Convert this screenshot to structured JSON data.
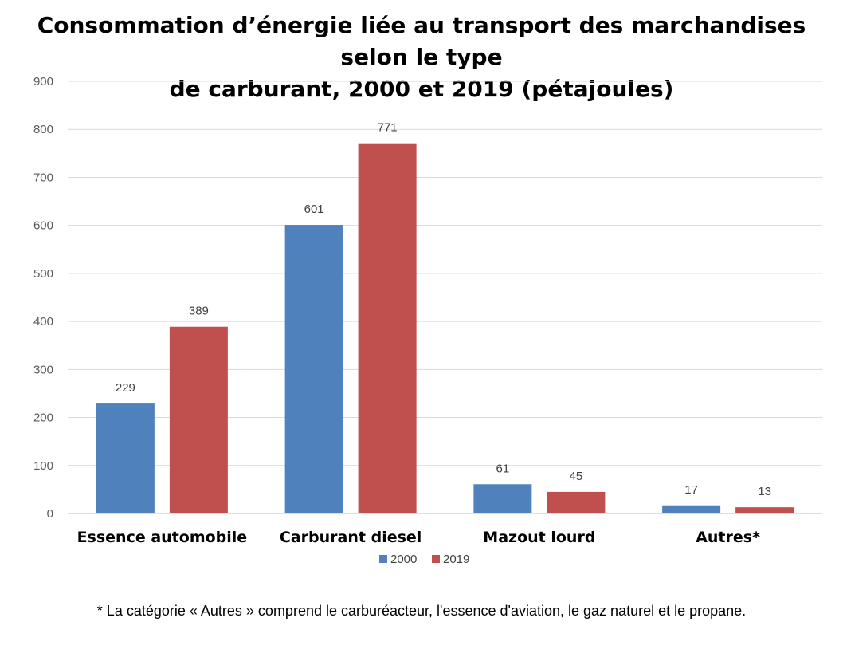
{
  "chart_data": {
    "type": "bar",
    "title_line1": "Consommation d’énergie liée au transport des marchandises selon le type",
    "title_line2": "de carburant, 2000 et 2019 (pétajoules)",
    "categories": [
      "Essence automobile",
      "Carburant diesel",
      "Mazout lourd",
      "Autres*"
    ],
    "series": [
      {
        "name": "2000",
        "values": [
          229,
          601,
          61,
          17
        ],
        "color": "#4f81bd"
      },
      {
        "name": "2019",
        "values": [
          389,
          771,
          45,
          13
        ],
        "color": "#c0504d"
      }
    ],
    "ylim": [
      0,
      900
    ],
    "yticks": [
      "0",
      "100",
      "200",
      "300",
      "400",
      "500",
      "600",
      "700",
      "800",
      "900"
    ],
    "grid": true,
    "legend_position": "bottom",
    "xlabel": "",
    "ylabel": ""
  },
  "footnote": "* La catégorie « Autres » comprend le carburéacteur, l'essence d'aviation, le gaz naturel et le propane."
}
